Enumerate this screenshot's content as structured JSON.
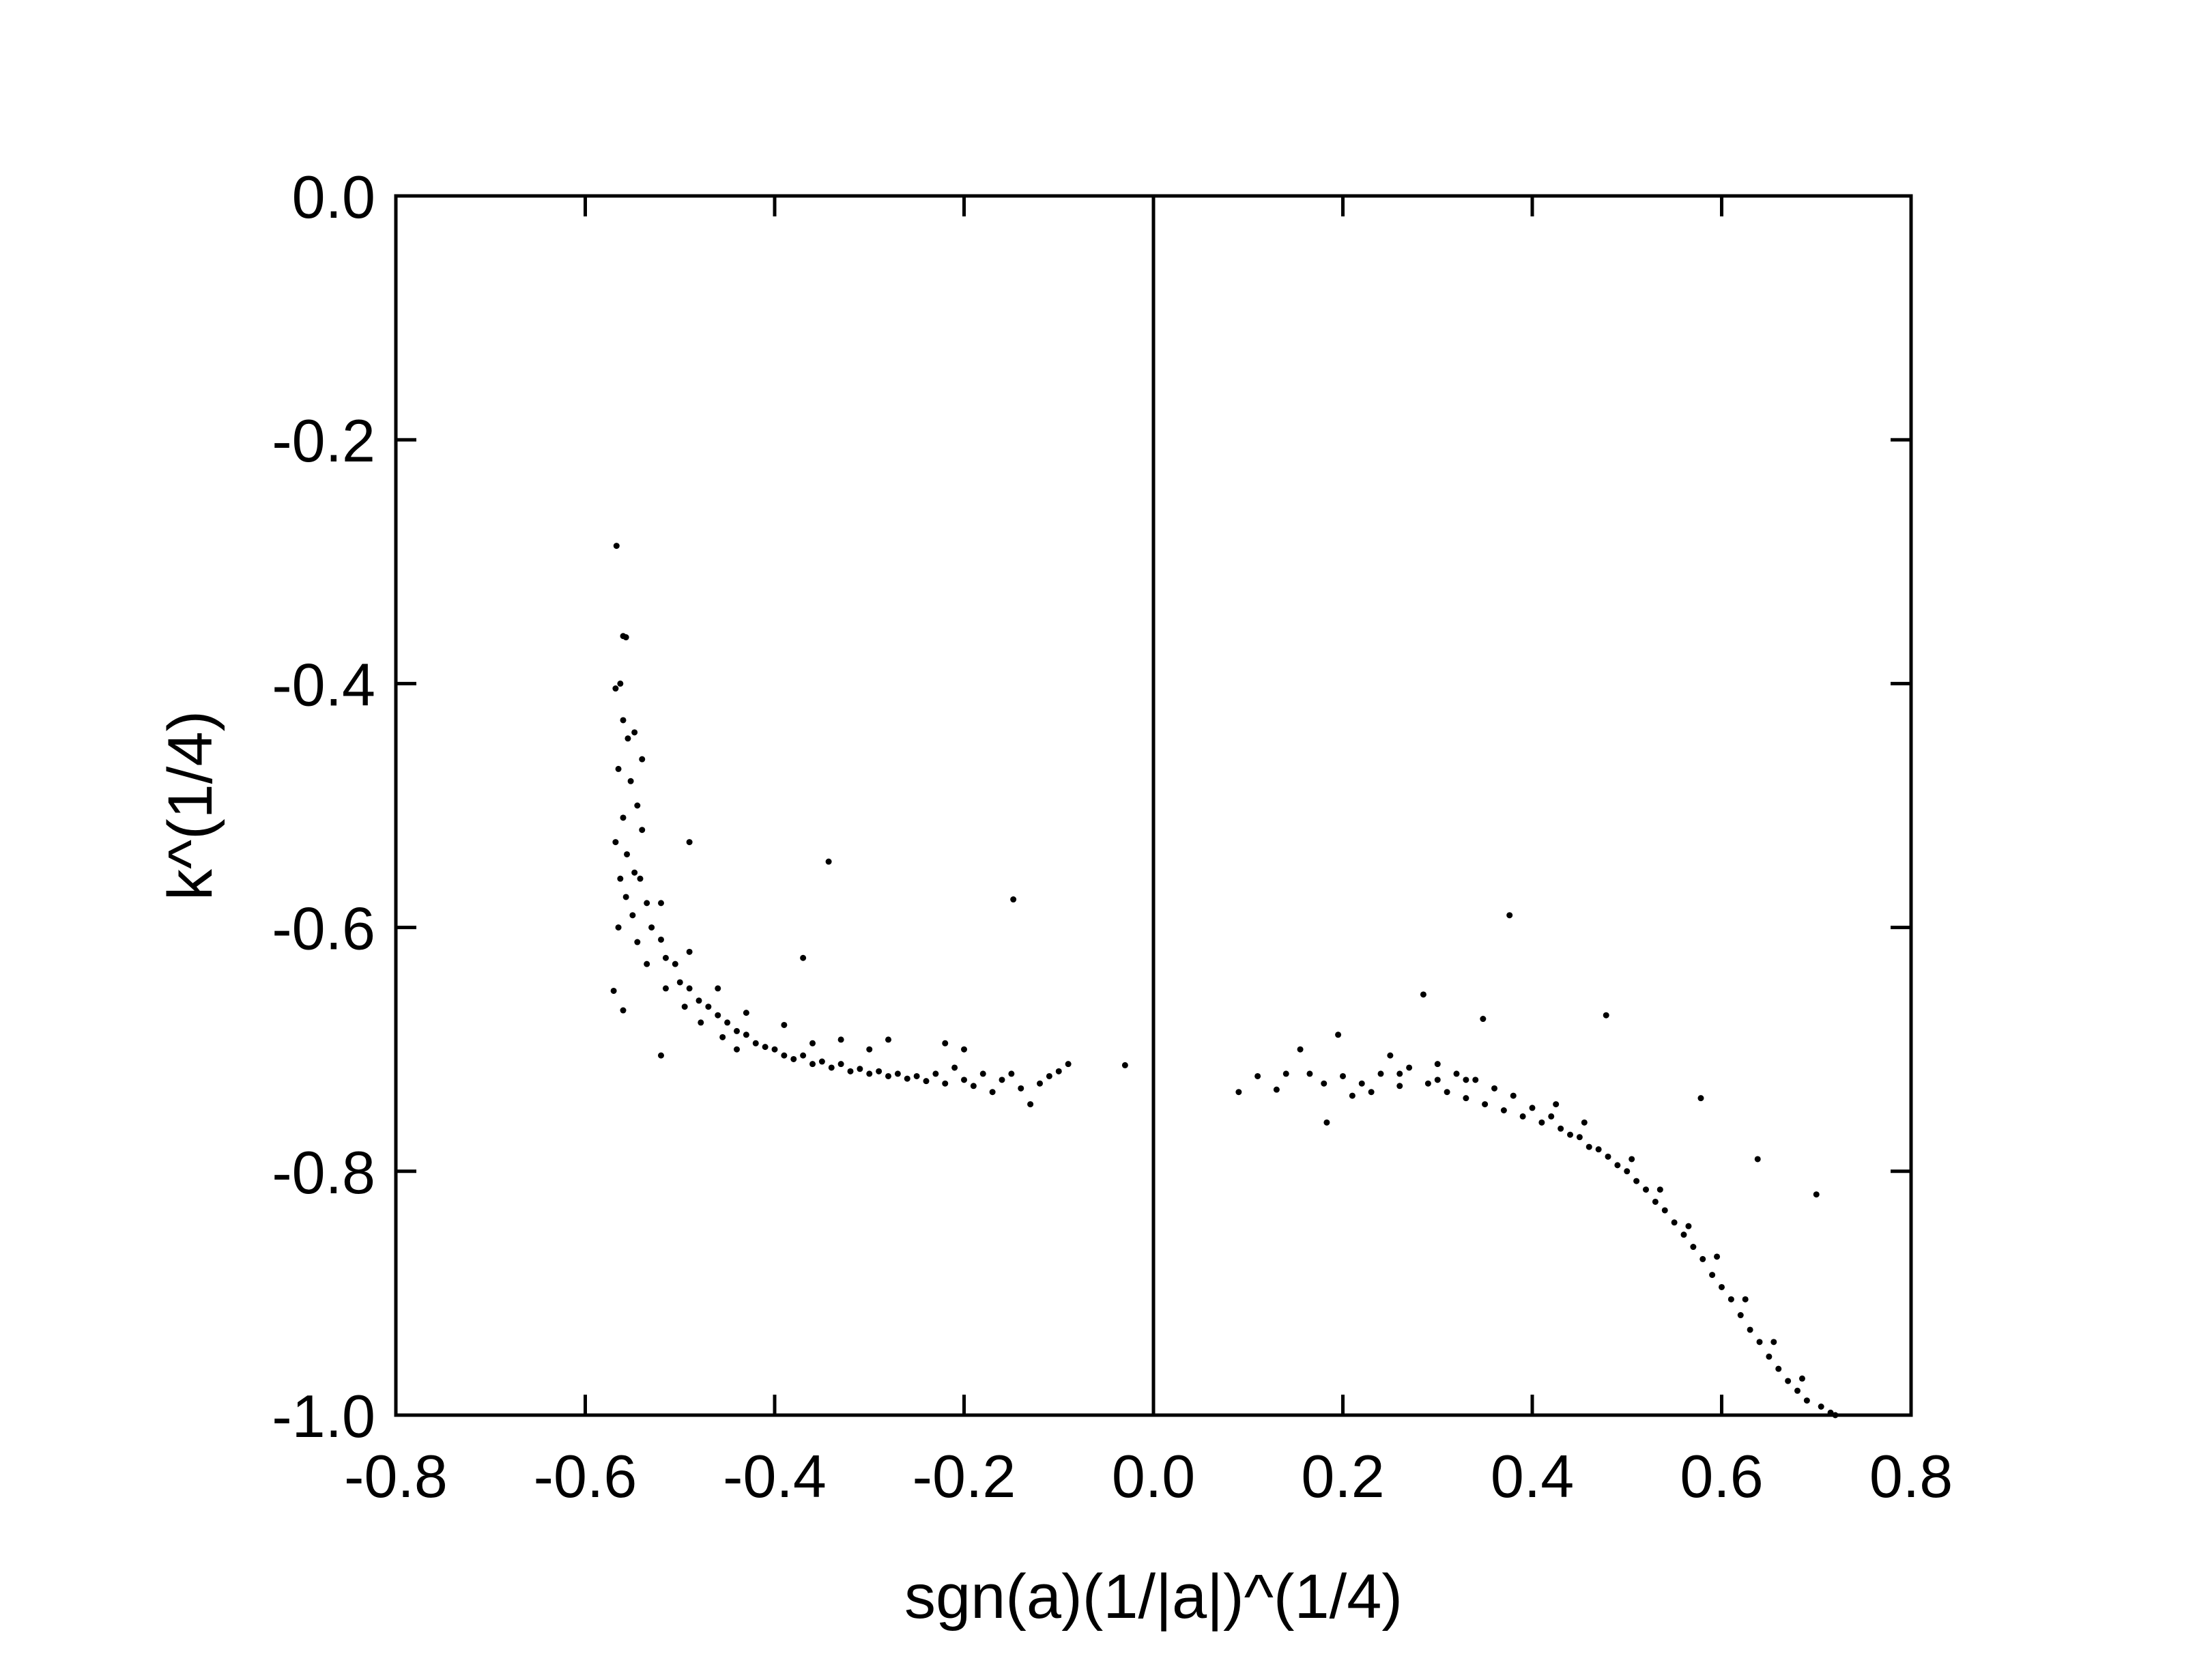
{
  "chart_data": {
    "type": "scatter",
    "title": "",
    "xlabel": "sgn(a)(1/|a|)^(1/4)",
    "ylabel": "k^(1/4)",
    "xlim": [
      -0.8,
      0.8
    ],
    "ylim": [
      -1.0,
      0.0
    ],
    "x_ticks": [
      "-0.8",
      "-0.6",
      "-0.4",
      "-0.2",
      "0.0",
      "0.2",
      "0.4",
      "0.6",
      "0.8"
    ],
    "y_ticks": [
      "0.0",
      "-0.2",
      "-0.4",
      "-0.6",
      "-0.8",
      "-1.0"
    ],
    "reference_line_x": 0.0,
    "grid": false,
    "marker_color": "#000000",
    "series": [
      {
        "points": [
          [
            -0.567,
            -0.287
          ],
          [
            -0.56,
            -0.361
          ],
          [
            -0.557,
            -0.362
          ],
          [
            -0.568,
            -0.404
          ],
          [
            -0.563,
            -0.4
          ],
          [
            -0.57,
            -0.652
          ],
          [
            -0.56,
            -0.668
          ],
          [
            -0.52,
            -0.705
          ],
          [
            -0.343,
            -0.546
          ],
          [
            -0.148,
            -0.577
          ],
          [
            -0.37,
            -0.625
          ],
          [
            -0.49,
            -0.53
          ],
          [
            -0.54,
            -0.462
          ],
          [
            -0.56,
            -0.43
          ],
          [
            -0.555,
            -0.445
          ],
          [
            -0.548,
            -0.44
          ],
          [
            -0.565,
            -0.47
          ],
          [
            -0.552,
            -0.48
          ],
          [
            -0.545,
            -0.5
          ],
          [
            -0.56,
            -0.51
          ],
          [
            -0.568,
            -0.53
          ],
          [
            -0.556,
            -0.54
          ],
          [
            -0.548,
            -0.555
          ],
          [
            -0.563,
            -0.56
          ],
          [
            -0.557,
            -0.575
          ],
          [
            -0.542,
            -0.56
          ],
          [
            -0.535,
            -0.58
          ],
          [
            -0.55,
            -0.59
          ],
          [
            -0.565,
            -0.6
          ],
          [
            -0.53,
            -0.6
          ],
          [
            -0.545,
            -0.612
          ],
          [
            -0.52,
            -0.61
          ],
          [
            -0.515,
            -0.625
          ],
          [
            -0.535,
            -0.63
          ],
          [
            -0.505,
            -0.63
          ],
          [
            -0.5,
            -0.645
          ],
          [
            -0.515,
            -0.65
          ],
          [
            -0.49,
            -0.65
          ],
          [
            -0.48,
            -0.66
          ],
          [
            -0.495,
            -0.665
          ],
          [
            -0.47,
            -0.665
          ],
          [
            -0.46,
            -0.672
          ],
          [
            -0.478,
            -0.678
          ],
          [
            -0.45,
            -0.678
          ],
          [
            -0.44,
            -0.685
          ],
          [
            -0.455,
            -0.69
          ],
          [
            -0.43,
            -0.688
          ],
          [
            -0.42,
            -0.695
          ],
          [
            -0.44,
            -0.7
          ],
          [
            -0.41,
            -0.698
          ],
          [
            -0.4,
            -0.7
          ],
          [
            -0.39,
            -0.705
          ],
          [
            -0.38,
            -0.708
          ],
          [
            -0.37,
            -0.705
          ],
          [
            -0.36,
            -0.712
          ],
          [
            -0.35,
            -0.71
          ],
          [
            -0.34,
            -0.715
          ],
          [
            -0.33,
            -0.712
          ],
          [
            -0.32,
            -0.718
          ],
          [
            -0.31,
            -0.716
          ],
          [
            -0.3,
            -0.72
          ],
          [
            -0.29,
            -0.718
          ],
          [
            -0.28,
            -0.722
          ],
          [
            -0.27,
            -0.72
          ],
          [
            -0.26,
            -0.724
          ],
          [
            -0.25,
            -0.722
          ],
          [
            -0.24,
            -0.726
          ],
          [
            -0.23,
            -0.72
          ],
          [
            -0.22,
            -0.728
          ],
          [
            -0.21,
            -0.715
          ],
          [
            -0.2,
            -0.725
          ],
          [
            -0.19,
            -0.73
          ],
          [
            -0.18,
            -0.72
          ],
          [
            -0.17,
            -0.735
          ],
          [
            -0.16,
            -0.725
          ],
          [
            -0.15,
            -0.72
          ],
          [
            -0.14,
            -0.732
          ],
          [
            -0.13,
            -0.745
          ],
          [
            -0.12,
            -0.728
          ],
          [
            -0.11,
            -0.722
          ],
          [
            -0.1,
            -0.718
          ],
          [
            -0.09,
            -0.712
          ],
          [
            -0.03,
            -0.713
          ],
          [
            -0.2,
            -0.7
          ],
          [
            -0.22,
            -0.695
          ],
          [
            -0.28,
            -0.692
          ],
          [
            -0.3,
            -0.7
          ],
          [
            -0.33,
            -0.692
          ],
          [
            -0.36,
            -0.695
          ],
          [
            -0.39,
            -0.68
          ],
          [
            -0.43,
            -0.67
          ],
          [
            -0.46,
            -0.65
          ],
          [
            -0.49,
            -0.62
          ],
          [
            -0.52,
            -0.58
          ],
          [
            -0.54,
            -0.52
          ],
          [
            0.09,
            -0.735
          ],
          [
            0.11,
            -0.722
          ],
          [
            0.13,
            -0.733
          ],
          [
            0.14,
            -0.72
          ],
          [
            0.155,
            -0.7
          ],
          [
            0.165,
            -0.72
          ],
          [
            0.18,
            -0.728
          ],
          [
            0.183,
            -0.76
          ],
          [
            0.195,
            -0.688
          ],
          [
            0.2,
            -0.722
          ],
          [
            0.21,
            -0.738
          ],
          [
            0.22,
            -0.728
          ],
          [
            0.23,
            -0.735
          ],
          [
            0.24,
            -0.72
          ],
          [
            0.25,
            -0.705
          ],
          [
            0.26,
            -0.73
          ],
          [
            0.27,
            -0.715
          ],
          [
            0.285,
            -0.655
          ],
          [
            0.29,
            -0.728
          ],
          [
            0.3,
            -0.712
          ],
          [
            0.31,
            -0.735
          ],
          [
            0.32,
            -0.72
          ],
          [
            0.33,
            -0.74
          ],
          [
            0.34,
            -0.725
          ],
          [
            0.348,
            -0.675
          ],
          [
            0.35,
            -0.745
          ],
          [
            0.36,
            -0.732
          ],
          [
            0.37,
            -0.75
          ],
          [
            0.376,
            -0.59
          ],
          [
            0.38,
            -0.738
          ],
          [
            0.39,
            -0.755
          ],
          [
            0.4,
            -0.748
          ],
          [
            0.41,
            -0.76
          ],
          [
            0.42,
            -0.755
          ],
          [
            0.43,
            -0.765
          ],
          [
            0.44,
            -0.77
          ],
          [
            0.45,
            -0.772
          ],
          [
            0.46,
            -0.78
          ],
          [
            0.47,
            -0.782
          ],
          [
            0.478,
            -0.672
          ],
          [
            0.48,
            -0.788
          ],
          [
            0.49,
            -0.795
          ],
          [
            0.5,
            -0.8
          ],
          [
            0.51,
            -0.808
          ],
          [
            0.52,
            -0.815
          ],
          [
            0.53,
            -0.825
          ],
          [
            0.54,
            -0.832
          ],
          [
            0.55,
            -0.842
          ],
          [
            0.56,
            -0.852
          ],
          [
            0.57,
            -0.862
          ],
          [
            0.578,
            -0.74
          ],
          [
            0.58,
            -0.872
          ],
          [
            0.59,
            -0.885
          ],
          [
            0.6,
            -0.895
          ],
          [
            0.61,
            -0.905
          ],
          [
            0.62,
            -0.918
          ],
          [
            0.63,
            -0.93
          ],
          [
            0.638,
            -0.79
          ],
          [
            0.64,
            -0.94
          ],
          [
            0.65,
            -0.952
          ],
          [
            0.66,
            -0.962
          ],
          [
            0.67,
            -0.972
          ],
          [
            0.68,
            -0.98
          ],
          [
            0.69,
            -0.988
          ],
          [
            0.7,
            -0.819
          ],
          [
            0.705,
            -0.993
          ],
          [
            0.715,
            -0.998
          ],
          [
            0.72,
            -1.0
          ],
          [
            0.425,
            -0.745
          ],
          [
            0.455,
            -0.76
          ],
          [
            0.505,
            -0.79
          ],
          [
            0.535,
            -0.815
          ],
          [
            0.565,
            -0.845
          ],
          [
            0.595,
            -0.87
          ],
          [
            0.625,
            -0.905
          ],
          [
            0.655,
            -0.94
          ],
          [
            0.685,
            -0.97
          ],
          [
            0.33,
            -0.725
          ],
          [
            0.3,
            -0.725
          ],
          [
            0.26,
            -0.72
          ]
        ]
      }
    ]
  }
}
